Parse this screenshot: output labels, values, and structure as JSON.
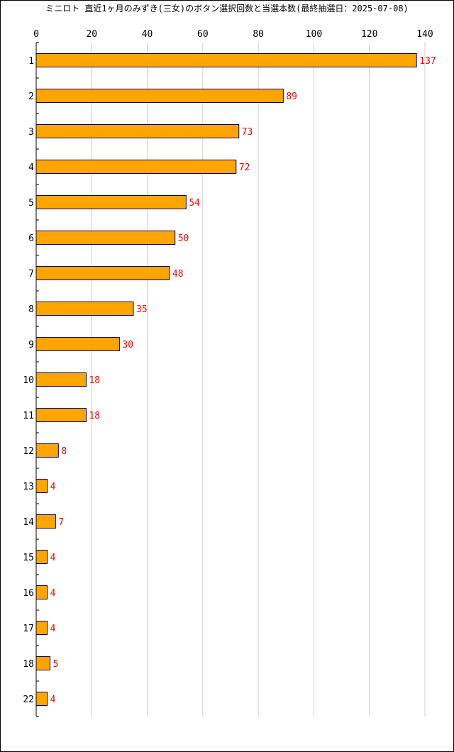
{
  "chart_data": {
    "type": "bar",
    "orientation": "horizontal",
    "title": "ミニロト 直近1ヶ月のみずき(三女)のボタン選択回数と当選本数(最終抽選日：2025-07-08)",
    "categories": [
      "1",
      "2",
      "3",
      "4",
      "5",
      "6",
      "7",
      "8",
      "9",
      "10",
      "11",
      "12",
      "13",
      "14",
      "15",
      "16",
      "17",
      "18",
      "22"
    ],
    "series": [
      {
        "values": [
          137,
          89,
          73,
          72,
          54,
          50,
          48,
          35,
          30,
          18,
          18,
          8,
          4,
          7,
          4,
          4,
          4,
          5,
          4
        ]
      }
    ],
    "xlim": [
      0,
      140
    ],
    "xticks": [
      0,
      20,
      40,
      60,
      80,
      100,
      120,
      140
    ],
    "grid": "vertical",
    "legend": "none",
    "bar_color": "#FFA500",
    "bar_edge_color": "#000080",
    "value_label_color": "#FF0000",
    "grid_color": "#D0D0D0"
  }
}
